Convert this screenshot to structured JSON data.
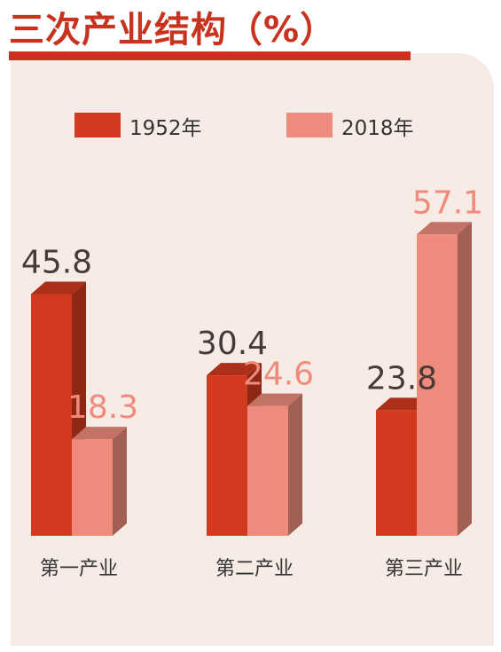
{
  "chart_data": {
    "type": "bar",
    "title": "三次产业结构（%）",
    "categories": [
      "第一产业",
      "第二产业",
      "第三产业"
    ],
    "series": [
      {
        "name": "1952年",
        "values": [
          45.8,
          30.4,
          23.8
        ],
        "value_labels": [
          "45.8",
          "30.4",
          "23.8"
        ],
        "color": "#d23a1f"
      },
      {
        "name": "2018年",
        "values": [
          18.3,
          24.6,
          57.1
        ],
        "value_labels": [
          "18.3",
          "24.6",
          "57.1"
        ],
        "color": "#ee8b7c"
      }
    ],
    "ylim": [
      0,
      60
    ],
    "grid": false,
    "legend_position": "top"
  }
}
